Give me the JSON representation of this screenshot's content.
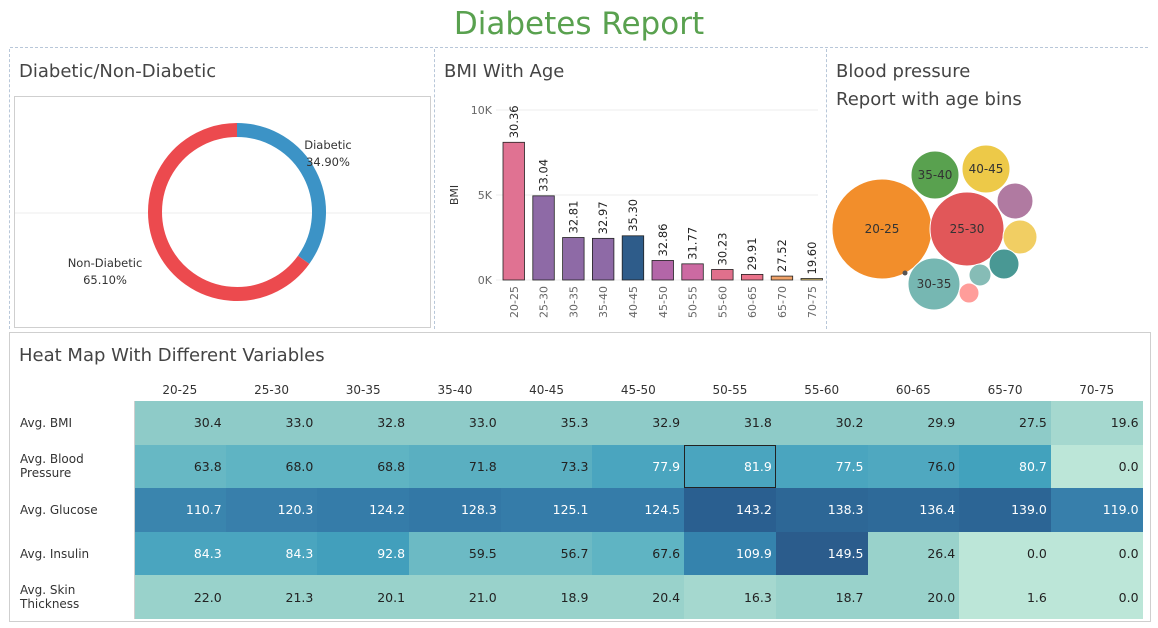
{
  "report_title": "Diabetes Report",
  "donut": {
    "title": "Diabetic/Non-Diabetic",
    "diabetic_label": "Diabetic",
    "diabetic_pct": "34.90%",
    "nondiabetic_label": "Non-Diabetic",
    "nondiabetic_pct": "65.10%",
    "colors": {
      "diabetic": "#3c93c6",
      "nondiabetic": "#ec4a4e"
    }
  },
  "bmi": {
    "title": "BMI With Age"
  },
  "bp": {
    "title_line1": "Blood pressure",
    "title_line2": "Report with age bins"
  },
  "heatmap": {
    "title": "Heat Map With Different Variables"
  },
  "chart_data": [
    {
      "type": "pie",
      "categories": [
        "Diabetic",
        "Non-Diabetic"
      ],
      "values": [
        34.9,
        65.1
      ],
      "title": "Diabetic/Non-Diabetic"
    },
    {
      "type": "bar",
      "title": "BMI With Age",
      "xlabel": "",
      "ylabel": "BMI",
      "ylim": [
        0,
        10000
      ],
      "yticks": [
        "0K",
        "5K",
        "10K"
      ],
      "categories": [
        "20-25",
        "25-30",
        "30-35",
        "35-40",
        "40-45",
        "45-50",
        "50-55",
        "55-60",
        "60-65",
        "65-70",
        "70-75"
      ],
      "values": [
        8100,
        4950,
        2500,
        2450,
        2600,
        1150,
        950,
        620,
        330,
        230,
        20
      ],
      "labels": [
        "30.36",
        "33.04",
        "32.81",
        "32.97",
        "35.30",
        "32.86",
        "31.77",
        "30.23",
        "29.91",
        "27.52",
        "19.60"
      ],
      "colors": [
        "#e07292",
        "#8e6aa6",
        "#8e6aa6",
        "#8e6aa6",
        "#2e5c8a",
        "#b366a8",
        "#cc6aa2",
        "#e0708c",
        "#ea728a",
        "#f0a36a",
        "#f3d77a"
      ]
    },
    {
      "type": "scatter",
      "subtype": "packed-bubble",
      "title": "Blood pressure Report with age bins",
      "bubbles": [
        {
          "label": "20-25",
          "color": "#f28e2b"
        },
        {
          "label": "25-30",
          "color": "#e15759"
        },
        {
          "label": "35-40",
          "color": "#59a14f"
        },
        {
          "label": "40-45",
          "color": "#edc948"
        },
        {
          "label": "30-35",
          "color": "#76b7b2"
        },
        {
          "label": "",
          "color": "#b07aa1"
        },
        {
          "label": "",
          "color": "#f1ce63"
        },
        {
          "label": "",
          "color": "#499894"
        },
        {
          "label": "",
          "color": "#86bcb6"
        },
        {
          "label": "",
          "color": "#ff9d9a"
        }
      ]
    },
    {
      "type": "heatmap",
      "title": "Heat Map With Different Variables",
      "columns": [
        "20-25",
        "25-30",
        "30-35",
        "35-40",
        "40-45",
        "45-50",
        "50-55",
        "55-60",
        "60-65",
        "65-70",
        "70-75"
      ],
      "rows": [
        {
          "name": "Avg. BMI",
          "values": [
            "30.4",
            "33.0",
            "32.8",
            "33.0",
            "35.3",
            "32.9",
            "31.8",
            "30.2",
            "29.9",
            "27.5",
            "19.6"
          ],
          "colors": [
            "#8ecbc8",
            "#8ecbc8",
            "#8ecbc8",
            "#8ecbc8",
            "#8ecbc8",
            "#8ecbc8",
            "#8ecbc8",
            "#8ecbc8",
            "#8ecbc8",
            "#8ecbc8",
            "#a5d8cf"
          ]
        },
        {
          "name": "Avg. Blood Pressure",
          "values": [
            "63.8",
            "68.0",
            "68.8",
            "71.8",
            "73.3",
            "77.9",
            "81.9",
            "77.5",
            "76.0",
            "80.7",
            "0.0"
          ],
          "colors": [
            "#67b8c4",
            "#5fb4c3",
            "#5fb4c3",
            "#5aafc1",
            "#5aafc1",
            "#4aa5bf",
            "#4aa5bf",
            "#4aa5bf",
            "#4fa8c0",
            "#42a2bd",
            "#bce6d8"
          ]
        },
        {
          "name": "Avg. Glucose",
          "values": [
            "110.7",
            "120.3",
            "124.2",
            "128.3",
            "125.1",
            "124.5",
            "143.2",
            "138.3",
            "136.4",
            "139.0",
            "119.0"
          ],
          "colors": [
            "#3a85ae",
            "#387fab",
            "#357ca9",
            "#3378a6",
            "#357ca9",
            "#357ca9",
            "#2a5f90",
            "#2d6796",
            "#2e6a99",
            "#2c6595",
            "#377fab"
          ]
        },
        {
          "name": "Avg. Insulin",
          "values": [
            "84.3",
            "84.3",
            "92.8",
            "59.5",
            "56.7",
            "67.6",
            "109.9",
            "149.5",
            "26.4",
            "0.0",
            "0.0"
          ],
          "colors": [
            "#4aa5bf",
            "#4aa5bf",
            "#429fbc",
            "#6cbac4",
            "#6cbac4",
            "#5fb4c3",
            "#3583ad",
            "#2b5c8c",
            "#99d2cb",
            "#bce6d8",
            "#bce6d8"
          ]
        },
        {
          "name": "Avg. Skin Thickness",
          "values": [
            "22.0",
            "21.3",
            "20.1",
            "21.0",
            "18.9",
            "20.4",
            "16.3",
            "18.7",
            "20.0",
            "1.6",
            "0.0"
          ],
          "colors": [
            "#99d2cb",
            "#99d2cb",
            "#99d2cb",
            "#99d2cb",
            "#99d2cb",
            "#99d2cb",
            "#a5d8cf",
            "#99d2cb",
            "#99d2cb",
            "#bce6d8",
            "#bce6d8"
          ]
        }
      ]
    }
  ]
}
